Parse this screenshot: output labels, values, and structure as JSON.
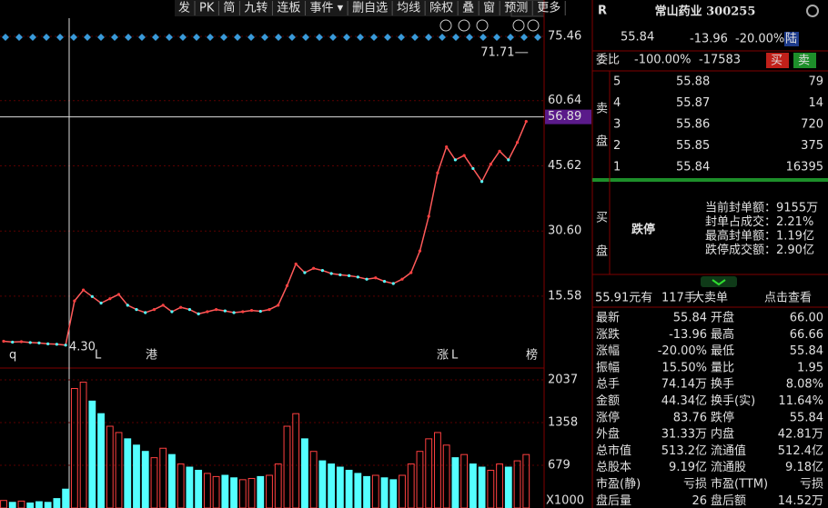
{
  "toolbar": [
    "发",
    "PK",
    "简",
    "九转",
    "连板",
    "事件 ▾",
    "删自选",
    "均线",
    "除权",
    "叠",
    "窗",
    "预测",
    "更多"
  ],
  "chart": {
    "price_ylim": [
      3.0,
      78.8
    ],
    "price_yticks": [
      75.46,
      60.64,
      45.62,
      {
        "value": 30.6,
        "label": "30.60"
      },
      15.58
    ],
    "crosshair": 56.89,
    "high_label": 71.71,
    "low_label": {
      "value": 4.3,
      "label": "4.30"
    },
    "closes": [
      5.2,
      5.0,
      5.1,
      4.9,
      4.8,
      4.6,
      4.5,
      4.3,
      14.5,
      17,
      15.5,
      14,
      15,
      16,
      13.5,
      12.5,
      11.8,
      12.5,
      13.5,
      12,
      13,
      12.5,
      11.5,
      12,
      12.5,
      12.2,
      11.8,
      12,
      12.3,
      12.1,
      12.5,
      13.5,
      18,
      23,
      21,
      22,
      21.5,
      20.8,
      20.5,
      20.3,
      20,
      19.5,
      19.8,
      19,
      18.5,
      19.5,
      21,
      26,
      34,
      44,
      50,
      47,
      48,
      45,
      42,
      46,
      49,
      47,
      51,
      55.84
    ],
    "volume_ylim": [
      0,
      2225
    ],
    "volume_yticks": [
      2037,
      1358,
      679
    ],
    "volume_unit": "X1000",
    "volumes": [
      120,
      90,
      110,
      80,
      100,
      90,
      150,
      300,
      1900,
      2000,
      1700,
      1500,
      1300,
      1200,
      1100,
      1000,
      900,
      800,
      950,
      850,
      700,
      650,
      600,
      550,
      500,
      520,
      480,
      450,
      470,
      500,
      520,
      700,
      1300,
      1500,
      1100,
      900,
      750,
      700,
      650,
      600,
      550,
      500,
      520,
      480,
      450,
      520,
      700,
      900,
      1100,
      1200,
      1000,
      800,
      850,
      700,
      650,
      600,
      700,
      650,
      750,
      850
    ],
    "markers": [
      "q",
      "L",
      "港",
      "涨",
      "L",
      "榜"
    ]
  },
  "quote": {
    "badge": "R",
    "title": "常山药业 300255",
    "price": "55.84",
    "change": "-13.96",
    "change_pct": "-20.00%",
    "exchange": "陆",
    "ratio_label": "委比",
    "ratio": "-100.00%",
    "ratio_diff": "-17583",
    "buy_btn": "买",
    "sell_btn": "卖",
    "sell_side": [
      "卖",
      "盘"
    ],
    "buy_side": [
      "买",
      "盘"
    ],
    "asks": [
      {
        "level": "5",
        "price": "55.88",
        "volume": "79"
      },
      {
        "level": "4",
        "price": "55.87",
        "volume": "14"
      },
      {
        "level": "3",
        "price": "55.86",
        "volume": "720"
      },
      {
        "level": "2",
        "price": "55.85",
        "volume": "375"
      },
      {
        "level": "1",
        "price": "55.84",
        "volume": "16395"
      }
    ],
    "limit_status": "跌停",
    "limit_info": [
      "当前封单额：9155万",
      "封单占成交：2.21%",
      "最高封单额：1.19亿",
      "跌停成交额：2.90亿"
    ],
    "big_order": {
      "price": "55.91元有",
      "size": "117手",
      "kind": "大卖单",
      "link": "点击查看"
    },
    "stats": [
      [
        {
          "label": "最新",
          "value": "55.84",
          "color": "#2fdc2f"
        },
        {
          "label": "开盘",
          "value": "66.00",
          "color": "#ff4040"
        }
      ],
      [
        {
          "label": "涨跌",
          "value": "-13.96",
          "color": "#2fdc2f"
        },
        {
          "label": "最高",
          "value": "66.66",
          "color": "#ff4040"
        }
      ],
      [
        {
          "label": "涨幅",
          "value": "-20.00%",
          "color": "#2fdc2f"
        },
        {
          "label": "最低",
          "value": "55.84",
          "color": "#2fdc2f"
        }
      ],
      [
        {
          "label": "振幅",
          "value": "15.50%",
          "color": "#e8e8e8"
        },
        {
          "label": "量比",
          "value": "1.95",
          "color": "#ff4040"
        }
      ],
      [
        {
          "label": "总手",
          "value": "74.14万",
          "color": "#e8e860"
        },
        {
          "label": "换手",
          "value": "8.08%",
          "color": "#e8e8e8"
        }
      ],
      [
        {
          "label": "金额",
          "value": "44.34亿",
          "color": "#5fd7ff"
        },
        {
          "label": "换手(实)",
          "value": "11.64%",
          "color": "#e8e8e8"
        }
      ],
      [
        {
          "label": "涨停",
          "value": "83.76",
          "color": "#ff4040"
        },
        {
          "label": "跌停",
          "value": "55.84",
          "color": "#2fdc2f"
        }
      ],
      [
        {
          "label": "外盘",
          "value": "31.33万",
          "color": "#ff4040"
        },
        {
          "label": "内盘",
          "value": "42.81万",
          "color": "#2fdc2f"
        }
      ],
      [
        {
          "label": "总市值",
          "value": "513.2亿",
          "color": "#e8e8e8"
        },
        {
          "label": "流通值",
          "value": "512.4亿",
          "color": "#e8e8e8"
        }
      ],
      [
        {
          "label": "总股本",
          "value": "9.19亿",
          "color": "#e8e8e8"
        },
        {
          "label": "流通股",
          "value": "9.18亿",
          "color": "#e8e8e8"
        }
      ],
      [
        {
          "label": "市盈(静)",
          "value": "亏损",
          "color": "#e8e8e8"
        },
        {
          "label": "市盈(TTM)",
          "value": "亏损",
          "color": "#e8e8e8"
        }
      ],
      [
        {
          "label": "盘后量",
          "value": "26",
          "color": "#e8e8e8"
        },
        {
          "label": "盘后额",
          "value": "14.52万",
          "color": "#e8e8e8"
        }
      ]
    ]
  }
}
